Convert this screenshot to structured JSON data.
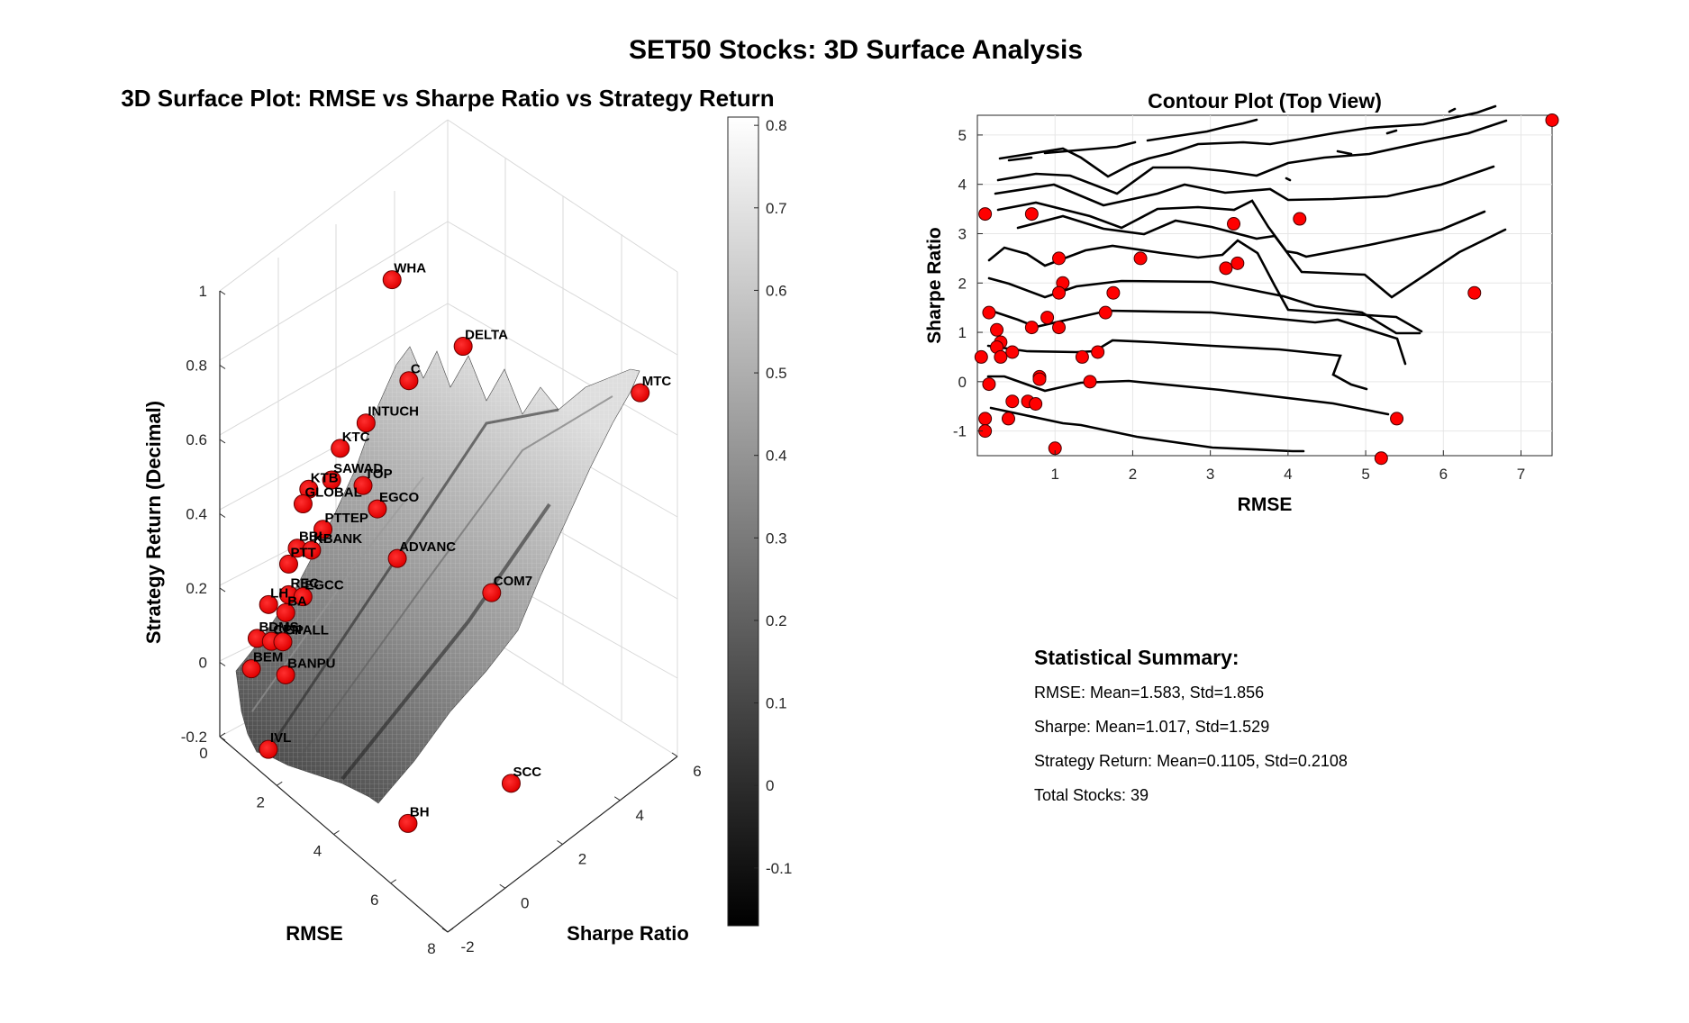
{
  "figure": {
    "title": "SET50 Stocks: 3D Surface Analysis"
  },
  "chart_data": [
    {
      "type": "scatter",
      "subtype": "3d-surface-with-points",
      "title": "3D Surface Plot: RMSE vs Sharpe Ratio vs Strategy Return",
      "xlabel": "RMSE",
      "ylabel": "Sharpe Ratio",
      "zlabel": "Strategy Return (Decimal)",
      "xlim": [
        0,
        8
      ],
      "ylim": [
        -2,
        6
      ],
      "zlim": [
        -0.2,
        1
      ],
      "x_ticks": [
        "0",
        "2",
        "4",
        "6",
        "8"
      ],
      "y_ticks": [
        "-2",
        "0",
        "2",
        "4",
        "6"
      ],
      "z_ticks": [
        "-0.2",
        "0",
        "0.2",
        "0.4",
        "0.6",
        "0.8",
        "1"
      ],
      "grid": true,
      "colormap": "gray",
      "colorbar": {
        "ticks": [
          "-0.1",
          "0",
          "0.1",
          "0.2",
          "0.3",
          "0.4",
          "0.5",
          "0.6",
          "0.7",
          "0.8"
        ],
        "tick_values": [
          -0.1,
          0,
          0.1,
          0.2,
          0.3,
          0.4,
          0.5,
          0.6,
          0.7,
          0.8
        ],
        "range": [
          -0.17,
          0.81
        ]
      },
      "marker_color": "#ff0000",
      "labeled_points": [
        {
          "label": "WHA",
          "rmse": 0.6,
          "sharpe": 3.4,
          "ret": 0.75
        },
        {
          "label": "DELTA",
          "rmse": 3.3,
          "sharpe": 3.2,
          "ret": 0.76
        },
        {
          "label": "MTC",
          "rmse": 7.4,
          "sharpe": 5.3,
          "ret": 0.78
        },
        {
          "label": "C",
          "rmse": 2.1,
          "sharpe": 2.5,
          "ret": 0.63
        },
        {
          "label": "INTUCH",
          "rmse": 1.1,
          "sharpe": 2.0,
          "ret": 0.48
        },
        {
          "label": "KTC",
          "rmse": 0.9,
          "sharpe": 1.3,
          "ret": 0.44
        },
        {
          "label": "SAWAD",
          "rmse": 0.8,
          "sharpe": 1.1,
          "ret": 0.36
        },
        {
          "label": "TOP",
          "rmse": 1.6,
          "sharpe": 1.4,
          "ret": 0.38
        },
        {
          "label": "EGCO",
          "rmse": 1.7,
          "sharpe": 1.8,
          "ret": 0.3
        },
        {
          "label": "KTB",
          "rmse": 0.3,
          "sharpe": 0.8,
          "ret": 0.32
        },
        {
          "label": "GLOBAL",
          "rmse": 0.2,
          "sharpe": 0.7,
          "ret": 0.28
        },
        {
          "label": "PTTEP",
          "rmse": 1.0,
          "sharpe": 0.6,
          "ret": 0.27
        },
        {
          "label": "SCC",
          "rmse": 6.4,
          "sharpe": 1.8,
          "ret": -0.13
        },
        {
          "label": "BH",
          "rmse": 5.4,
          "sharpe": -0.8,
          "ret": -0.15
        },
        {
          "label": "ADVANC",
          "rmse": 2.3,
          "sharpe": 1.9,
          "ret": 0.2
        },
        {
          "label": "BBL",
          "rmse": 0.5,
          "sharpe": 0.2,
          "ret": 0.21
        },
        {
          "label": "KBANK",
          "rmse": 0.7,
          "sharpe": 0.5,
          "ret": 0.2
        },
        {
          "label": "COM7",
          "rmse": 4.2,
          "sharpe": 3.3,
          "ret": 0.15
        },
        {
          "label": "PTT",
          "rmse": 0.3,
          "sharpe": 0.1,
          "ret": 0.16
        },
        {
          "label": "REC",
          "rmse": 0.4,
          "sharpe": 0.0,
          "ret": 0.09
        },
        {
          "label": "EGCC",
          "rmse": 0.6,
          "sharpe": 0.3,
          "ret": 0.08
        },
        {
          "label": "LH",
          "rmse": 0.2,
          "sharpe": -0.5,
          "ret": 0.08
        },
        {
          "label": "BA",
          "rmse": 0.5,
          "sharpe": -0.2,
          "ret": 0.06
        },
        {
          "label": "BDMS",
          "rmse": 0.1,
          "sharpe": -0.8,
          "ret": 0.0
        },
        {
          "label": "CPN",
          "rmse": 0.4,
          "sharpe": -0.6,
          "ret": 0.0
        },
        {
          "label": "CPALL",
          "rmse": 0.6,
          "sharpe": -0.4,
          "ret": 0.0
        },
        {
          "label": "BANPU",
          "rmse": 0.8,
          "sharpe": -0.5,
          "ret": -0.07
        },
        {
          "label": "BEM",
          "rmse": 0.1,
          "sharpe": -1.0,
          "ret": -0.07
        },
        {
          "label": "IVL",
          "rmse": 1.0,
          "sharpe": -1.3,
          "ret": -0.21
        }
      ]
    },
    {
      "type": "scatter",
      "subtype": "contour",
      "title": "Contour Plot (Top View)",
      "xlabel": "RMSE",
      "ylabel": "Sharpe Ratio",
      "xlim": [
        0,
        7.4
      ],
      "ylim": [
        -1.5,
        5.4
      ],
      "x_ticks": [
        1,
        2,
        3,
        4,
        5,
        6,
        7
      ],
      "y_ticks": [
        -1,
        0,
        1,
        2,
        3,
        4,
        5
      ],
      "grid": true,
      "marker_color": "#ff0000",
      "points": [
        [
          0.1,
          3.4
        ],
        [
          0.7,
          3.4
        ],
        [
          1.05,
          2.5
        ],
        [
          1.1,
          2.0
        ],
        [
          1.05,
          1.8
        ],
        [
          2.1,
          2.5
        ],
        [
          3.3,
          3.2
        ],
        [
          4.15,
          3.3
        ],
        [
          3.2,
          2.3
        ],
        [
          3.35,
          2.4
        ],
        [
          6.4,
          1.8
        ],
        [
          7.4,
          5.3
        ],
        [
          1.75,
          1.8
        ],
        [
          1.65,
          1.4
        ],
        [
          0.15,
          1.4
        ],
        [
          0.25,
          1.05
        ],
        [
          0.3,
          0.8
        ],
        [
          0.25,
          0.7
        ],
        [
          0.45,
          0.6
        ],
        [
          0.3,
          0.5
        ],
        [
          0.7,
          1.1
        ],
        [
          0.9,
          1.3
        ],
        [
          1.05,
          1.1
        ],
        [
          1.55,
          0.6
        ],
        [
          1.35,
          0.5
        ],
        [
          0.05,
          0.5
        ],
        [
          0.8,
          0.1
        ],
        [
          0.8,
          0.05
        ],
        [
          1.45,
          0.0
        ],
        [
          0.15,
          -0.05
        ],
        [
          0.45,
          -0.4
        ],
        [
          0.65,
          -0.4
        ],
        [
          0.75,
          -0.45
        ],
        [
          0.1,
          -0.75
        ],
        [
          0.4,
          -0.75
        ],
        [
          0.1,
          -1.0
        ],
        [
          1.0,
          -1.35
        ],
        [
          5.4,
          -0.75
        ],
        [
          5.2,
          -1.55
        ]
      ]
    }
  ],
  "summary": {
    "heading": "Statistical Summary:",
    "lines": [
      "RMSE: Mean=1.583, Std=1.856",
      "Sharpe: Mean=1.017, Std=1.529",
      "Strategy Return: Mean=0.1105, Std=0.2108",
      "Total Stocks: 39"
    ]
  }
}
